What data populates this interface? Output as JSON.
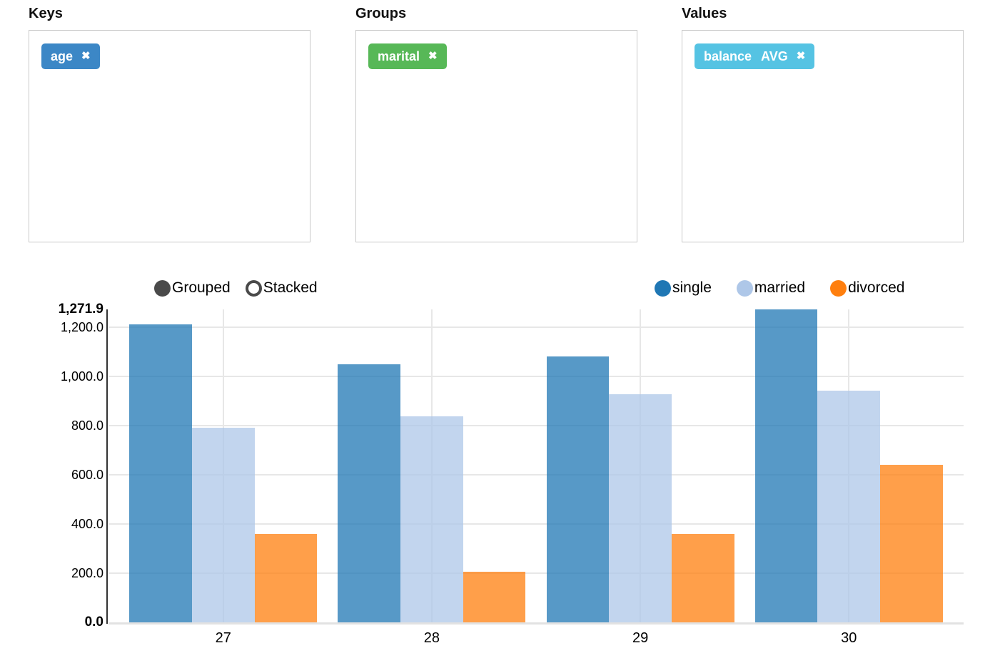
{
  "icons": {
    "remove": "✖"
  },
  "panels": [
    {
      "label": "Keys",
      "tags": [
        {
          "text": "age",
          "color": "#3C87C6"
        }
      ]
    },
    {
      "label": "Groups",
      "tags": [
        {
          "text": "marital",
          "color": "#57B857"
        }
      ]
    },
    {
      "label": "Values",
      "tags": [
        {
          "text": "balance",
          "agg": "AVG",
          "color": "#55C3E3"
        }
      ]
    }
  ],
  "chart_controls": {
    "options": [
      {
        "label": "Grouped",
        "selected": true
      },
      {
        "label": "Stacked",
        "selected": false
      }
    ]
  },
  "chart_data": {
    "type": "bar",
    "mode": "grouped",
    "title": "",
    "xlabel": "",
    "ylabel": "",
    "categories": [
      "27",
      "28",
      "29",
      "30"
    ],
    "series": [
      {
        "name": "single",
        "color": "#1F77B4",
        "fill": "rgba(31,119,180,0.75)",
        "values": [
          1210,
          1048,
          1080,
          1271.9
        ]
      },
      {
        "name": "married",
        "color": "#AEC7E8",
        "fill": "rgba(174,199,232,0.75)",
        "values": [
          792,
          838,
          926,
          943
        ]
      },
      {
        "name": "divorced",
        "color": "#FF7F0E",
        "fill": "rgba(255,127,14,0.75)",
        "values": [
          359,
          206,
          360,
          641
        ]
      }
    ],
    "ylim": [
      0,
      1271.9
    ],
    "yticks": [
      {
        "value": 0,
        "label": "0.0",
        "bold": true
      },
      {
        "value": 200,
        "label": "200.0"
      },
      {
        "value": 400,
        "label": "400.0"
      },
      {
        "value": 600,
        "label": "600.0"
      },
      {
        "value": 800,
        "label": "800.0"
      },
      {
        "value": 1000,
        "label": "1,000.0"
      },
      {
        "value": 1200,
        "label": "1,200.0"
      },
      {
        "value": 1271.9,
        "label": "1,271.9",
        "bold": true
      }
    ],
    "grid": true,
    "legend_position": "top-right"
  }
}
